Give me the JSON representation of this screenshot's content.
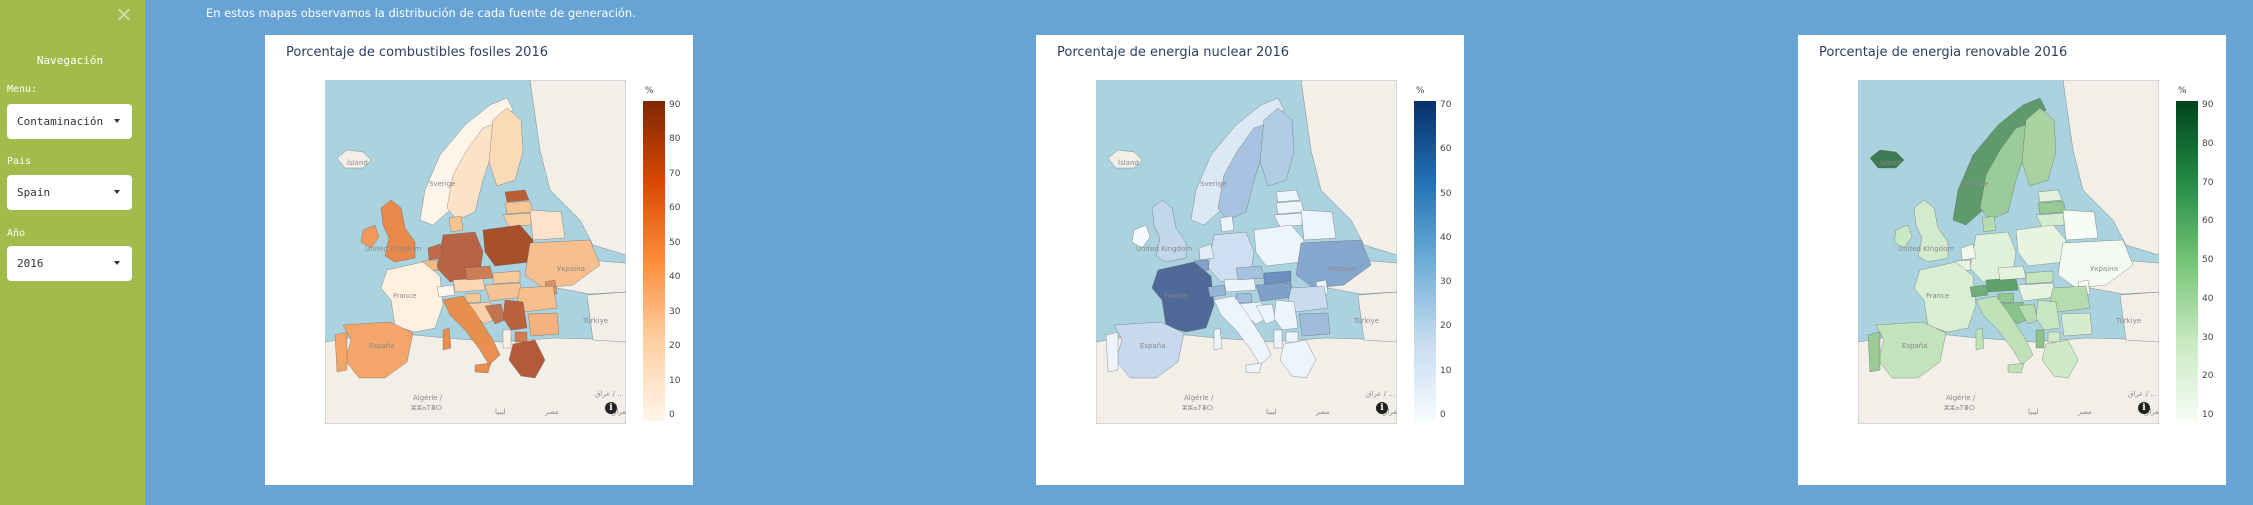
{
  "sidebar": {
    "close_label": "×",
    "title": "Navegación",
    "fields": [
      {
        "label": "Menu:",
        "value": "Contaminación"
      },
      {
        "label": "Pais",
        "value": "Spain"
      },
      {
        "label": "Año",
        "value": "2016"
      }
    ]
  },
  "intro": "En estos mapas observamos la distribución de cada fuente de generación.",
  "map_labels": {
    "iceland": "Ísland",
    "sverige": "Sverige",
    "uk": "United Kingdom",
    "france": "France",
    "espana": "España",
    "ukraine": "Україна",
    "turkey": "Türkiye",
    "algeria_1": "Algérie /",
    "algeria_2": "ⵣⵣⴰⵢⴻⵔ",
    "libya": "ليبيا",
    "egypt": "مصر",
    "iraq": "العراق",
    "iraq_2": "عراق / ..."
  },
  "charts": [
    {
      "title": "Porcentaje de combustibles fosiles 2016",
      "unit": "%",
      "ticks": [
        "90",
        "80",
        "70",
        "60",
        "50",
        "40",
        "30",
        "20",
        "10",
        "0"
      ],
      "scale_colors": [
        "#fff5eb",
        "#fdd0a2",
        "#fd8d3c",
        "#d94801",
        "#7f2704"
      ],
      "info": "i"
    },
    {
      "title": "Porcentaje de energia nuclear 2016",
      "unit": "%",
      "ticks": [
        "70",
        "60",
        "50",
        "40",
        "30",
        "20",
        "10",
        "0"
      ],
      "scale_colors": [
        "#f7fbff",
        "#c6dbef",
        "#6baed6",
        "#2171b5",
        "#08306b"
      ],
      "info": "i"
    },
    {
      "title": "Porcentaje de energia renovable 2016",
      "unit": "%",
      "ticks": [
        "90",
        "80",
        "70",
        "60",
        "50",
        "40",
        "30",
        "20",
        "10"
      ],
      "scale_colors": [
        "#f7fcf5",
        "#c7e9c0",
        "#74c476",
        "#238b45",
        "#00441b"
      ],
      "info": "i"
    }
  ]
}
